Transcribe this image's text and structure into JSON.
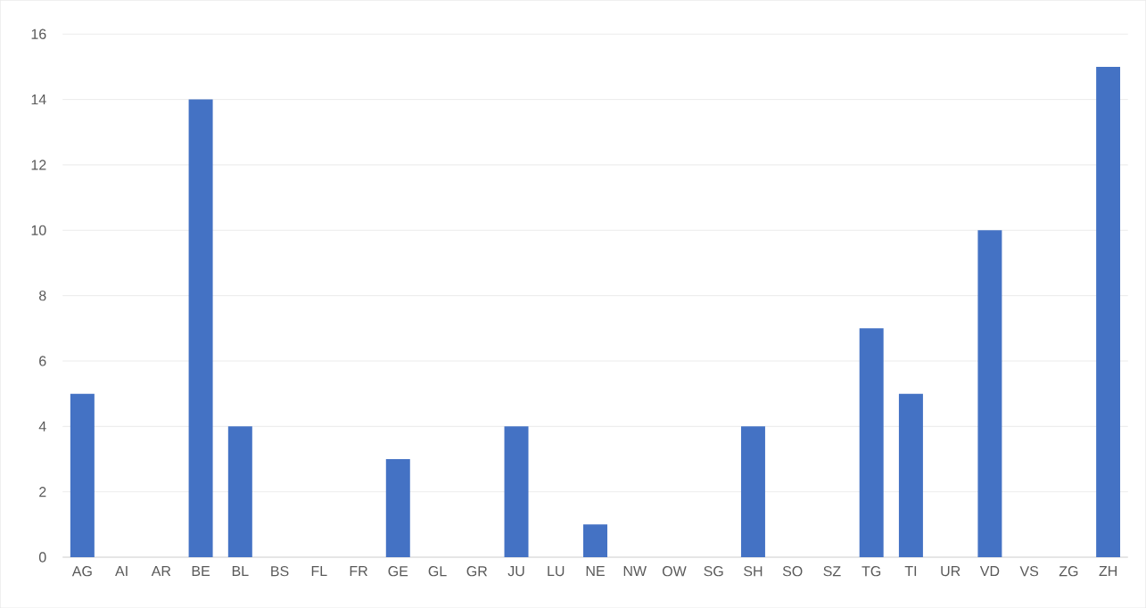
{
  "chart_data": {
    "type": "bar",
    "categories": [
      "AG",
      "AI",
      "AR",
      "BE",
      "BL",
      "BS",
      "FL",
      "FR",
      "GE",
      "GL",
      "GR",
      "JU",
      "LU",
      "NE",
      "NW",
      "OW",
      "SG",
      "SH",
      "SO",
      "SZ",
      "TG",
      "TI",
      "UR",
      "VD",
      "VS",
      "ZG",
      "ZH"
    ],
    "values": [
      5,
      0,
      0,
      14,
      4,
      0,
      0,
      0,
      3,
      0,
      0,
      4,
      0,
      1,
      0,
      0,
      0,
      4,
      0,
      0,
      7,
      5,
      0,
      10,
      0,
      0,
      15
    ],
    "color": "#4472c4",
    "ylim": [
      0,
      16
    ],
    "yticks": [
      0,
      2,
      4,
      6,
      8,
      10,
      12,
      14,
      16
    ],
    "grid": "y"
  }
}
